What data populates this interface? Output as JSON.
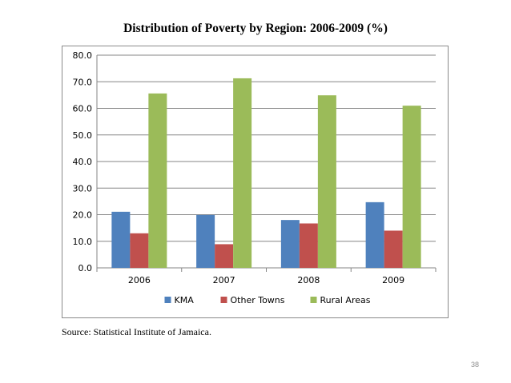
{
  "page": {
    "title": "Distribution of Poverty by Region: 2006-2009 (%)",
    "source": "Source: Statistical Institute of Jamaica.",
    "page_number": "38"
  },
  "chart_data": {
    "type": "bar",
    "categories": [
      "2006",
      "2007",
      "2008",
      "2009"
    ],
    "series": [
      {
        "name": "KMA",
        "values": [
          21.1,
          19.9,
          18.0,
          24.7
        ],
        "color": "#4f81bd"
      },
      {
        "name": "Other Towns",
        "values": [
          13.0,
          8.9,
          16.7,
          14.0
        ],
        "color": "#c0504d"
      },
      {
        "name": "Rural Areas",
        "values": [
          65.6,
          71.3,
          64.9,
          61.0
        ],
        "color": "#9bbb59"
      }
    ],
    "ylim": [
      0,
      80
    ],
    "yticks": [
      "0.0",
      "10.0",
      "20.0",
      "30.0",
      "40.0",
      "50.0",
      "60.0",
      "70.0",
      "80.0"
    ],
    "grid": true,
    "legend_position": "bottom"
  }
}
